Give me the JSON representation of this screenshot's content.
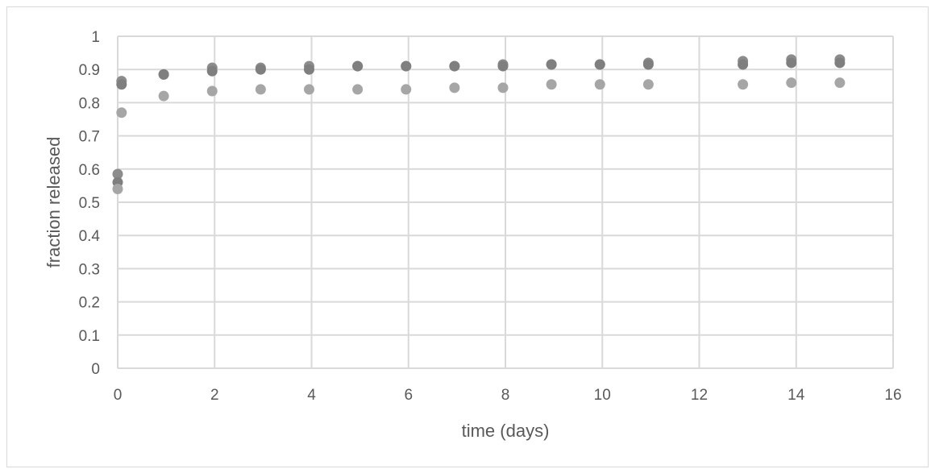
{
  "chart_data": {
    "type": "scatter",
    "title": "",
    "xlabel": "time (days)",
    "ylabel": "fraction released",
    "xlim": [
      0,
      16
    ],
    "ylim": [
      0,
      1
    ],
    "x_ticks": [
      0,
      2,
      4,
      6,
      8,
      10,
      12,
      14,
      16
    ],
    "y_ticks": [
      0,
      0.1,
      0.2,
      0.3,
      0.4,
      0.5,
      0.6,
      0.7,
      0.8,
      0.9,
      1
    ],
    "y_tick_labels": [
      "0",
      "0.1",
      "0.2",
      "0.3",
      "0.4",
      "0.5",
      "0.6",
      "0.7",
      "0.8",
      "0.9",
      "1"
    ],
    "grid": true,
    "legend": "none",
    "colors": {
      "series_a": "#8c8c8c",
      "series_b": "#7f7f7f",
      "series_c": "#a6a6a6",
      "grid": "#d9d9d9",
      "text": "#595959"
    },
    "series": [
      {
        "color": "#8c8c8c",
        "x": [
          0,
          0.08,
          0.95,
          1.95,
          2.95,
          3.95,
          4.95,
          5.95,
          6.95,
          7.95,
          8.95,
          9.95,
          10.95,
          12.9,
          13.9,
          14.9
        ],
        "y": [
          0.585,
          0.865,
          0.885,
          0.905,
          0.905,
          0.91,
          0.91,
          0.91,
          0.91,
          0.915,
          0.915,
          0.915,
          0.92,
          0.925,
          0.93,
          0.93
        ]
      },
      {
        "color": "#7f7f7f",
        "x": [
          0,
          0.08,
          0.95,
          1.95,
          2.95,
          3.95,
          4.95,
          5.95,
          6.95,
          7.95,
          8.95,
          9.95,
          10.95,
          12.9,
          13.9,
          14.9
        ],
        "y": [
          0.56,
          0.855,
          0.885,
          0.895,
          0.9,
          0.9,
          0.91,
          0.91,
          0.91,
          0.91,
          0.915,
          0.915,
          0.915,
          0.915,
          0.92,
          0.92
        ]
      },
      {
        "color": "#a6a6a6",
        "x": [
          0,
          0.08,
          0.95,
          1.95,
          2.95,
          3.95,
          4.95,
          5.95,
          6.95,
          7.95,
          8.95,
          9.95,
          10.95,
          12.9,
          13.9,
          14.9
        ],
        "y": [
          0.54,
          0.77,
          0.82,
          0.835,
          0.84,
          0.84,
          0.84,
          0.84,
          0.845,
          0.845,
          0.855,
          0.855,
          0.855,
          0.855,
          0.86,
          0.86
        ]
      }
    ]
  }
}
